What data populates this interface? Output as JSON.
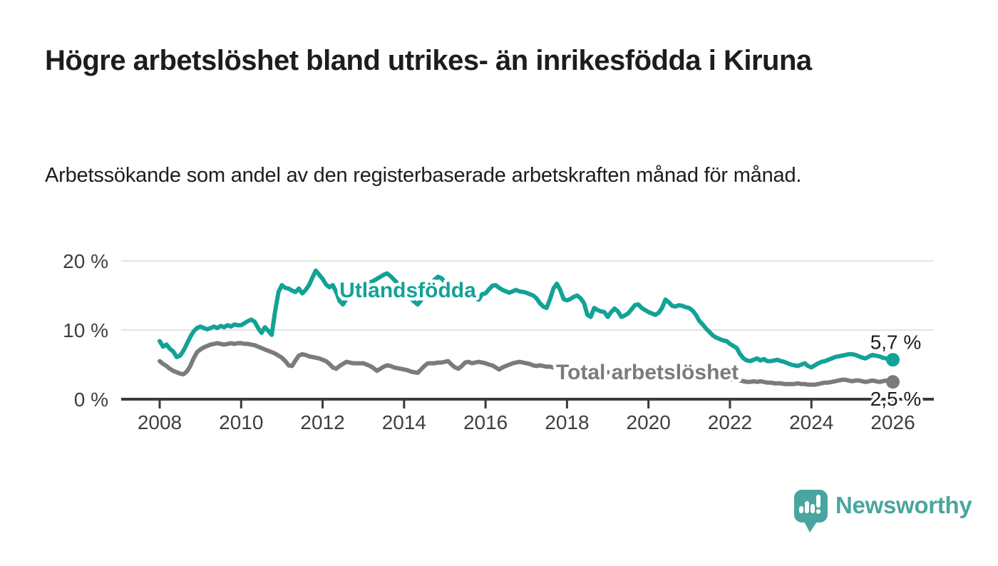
{
  "header": {
    "title": "Högre arbetslöshet bland utrikes- än inrikesfödda i Kiruna",
    "subtitle": "Arbetssökande som andel av den registerbaserade arbetskraften månad för månad."
  },
  "footer": {
    "brand": "Newsworthy"
  },
  "colors": {
    "accent_teal": "#12a296",
    "series_gray": "#7b7b7b",
    "logo_teal": "#4aa5a0",
    "text_dark": "#1d1d1b",
    "axis_text": "#3f3f3f",
    "axis_line": "#3a3a3a",
    "gridline": "#e4e4e4",
    "background": "#ffffff"
  },
  "chart_data": {
    "type": "line",
    "title": "Högre arbetslöshet bland utrikes- än inrikesfödda i Kiruna",
    "xlabel": "",
    "ylabel": "",
    "x_start_year": 2008,
    "x_step_months": 1,
    "x_tick_years": [
      "2008",
      "2010",
      "2012",
      "2014",
      "2016",
      "2018",
      "2020",
      "2022",
      "2024",
      "2026"
    ],
    "y_ticks": [
      0,
      10,
      20
    ],
    "y_tick_labels": [
      "0 %",
      "10 %",
      "20 %"
    ],
    "ylim": [
      0,
      21
    ],
    "xlim_years": [
      2007.05,
      2027.0
    ],
    "grid": "horizontal",
    "legend": "inline-labels",
    "series": [
      {
        "name": "Utlandsfödda",
        "color": "#12a296",
        "end_label": "5,7 %",
        "end_value": 5.7,
        "values": [
          8.4,
          7.6,
          7.9,
          7.3,
          6.9,
          6.1,
          6.3,
          7.0,
          8.0,
          9.0,
          9.8,
          10.3,
          10.5,
          10.3,
          10.1,
          10.3,
          10.5,
          10.3,
          10.6,
          10.4,
          10.7,
          10.5,
          10.8,
          10.7,
          10.7,
          11.0,
          11.3,
          11.5,
          11.2,
          10.3,
          9.6,
          10.4,
          9.9,
          9.3,
          12.7,
          15.5,
          16.5,
          16.1,
          16.0,
          15.7,
          15.5,
          16.0,
          15.3,
          15.8,
          16.5,
          17.6,
          18.6,
          18.0,
          17.4,
          16.6,
          16.2,
          16.5,
          15.5,
          14.2,
          13.7,
          14.5,
          15.3,
          15.8,
          16.0,
          16.2,
          16.4,
          16.6,
          16.9,
          17.1,
          17.4,
          17.7,
          18.0,
          18.2,
          17.8,
          17.3,
          16.8,
          16.3,
          15.8,
          15.2,
          14.6,
          14.1,
          13.7,
          14.3,
          15.1,
          15.9,
          16.7,
          17.3,
          17.7,
          17.5,
          17.0,
          16.5,
          16.1,
          15.8,
          15.6,
          15.5,
          15.7,
          15.8,
          15.2,
          14.6,
          14.4,
          15.2,
          15.3,
          15.9,
          16.4,
          16.5,
          16.1,
          15.8,
          15.6,
          15.4,
          15.6,
          15.8,
          15.6,
          15.5,
          15.4,
          15.2,
          15.0,
          14.6,
          13.9,
          13.4,
          13.2,
          14.5,
          16.0,
          16.7,
          15.8,
          14.5,
          14.3,
          14.5,
          14.8,
          15.0,
          14.6,
          13.9,
          12.2,
          11.9,
          13.2,
          12.9,
          12.7,
          12.6,
          11.9,
          12.6,
          13.1,
          12.7,
          11.9,
          12.1,
          12.4,
          13.0,
          13.6,
          13.7,
          13.2,
          12.9,
          12.6,
          12.4,
          12.2,
          12.5,
          13.2,
          14.4,
          14.0,
          13.5,
          13.4,
          13.6,
          13.5,
          13.3,
          13.2,
          12.8,
          12.2,
          11.3,
          10.8,
          10.2,
          9.7,
          9.2,
          8.9,
          8.7,
          8.5,
          8.4,
          8.0,
          7.7,
          7.4,
          6.5,
          5.9,
          5.6,
          5.5,
          5.7,
          5.9,
          5.6,
          5.8,
          5.5,
          5.5,
          5.6,
          5.7,
          5.5,
          5.4,
          5.2,
          5.0,
          4.9,
          4.8,
          5.0,
          5.2,
          4.8,
          4.6,
          4.9,
          5.2,
          5.4,
          5.5,
          5.7,
          5.9,
          6.1,
          6.2,
          6.3,
          6.4,
          6.5,
          6.5,
          6.4,
          6.2,
          6.0,
          5.9,
          6.2,
          6.4,
          6.3,
          6.2,
          6.0,
          5.9,
          5.8,
          5.7
        ]
      },
      {
        "name": "Total arbetslöshet",
        "color": "#7b7b7b",
        "end_label": "2,5 %",
        "end_value": 2.5,
        "values": [
          5.5,
          5.1,
          4.8,
          4.4,
          4.1,
          3.9,
          3.7,
          3.6,
          4.0,
          4.8,
          5.9,
          6.8,
          7.2,
          7.5,
          7.7,
          7.9,
          8.0,
          8.1,
          8.0,
          7.9,
          8.0,
          8.1,
          8.0,
          8.1,
          8.1,
          8.0,
          8.0,
          7.9,
          7.8,
          7.6,
          7.4,
          7.2,
          7.0,
          6.8,
          6.6,
          6.3,
          6.0,
          5.5,
          4.9,
          4.8,
          5.6,
          6.3,
          6.5,
          6.4,
          6.2,
          6.1,
          6.0,
          5.9,
          5.7,
          5.5,
          5.1,
          4.6,
          4.4,
          4.8,
          5.1,
          5.4,
          5.3,
          5.2,
          5.2,
          5.2,
          5.2,
          5.0,
          4.8,
          4.5,
          4.1,
          4.4,
          4.7,
          4.9,
          4.8,
          4.6,
          4.5,
          4.4,
          4.3,
          4.2,
          4.0,
          3.9,
          3.8,
          4.3,
          4.8,
          5.2,
          5.2,
          5.2,
          5.3,
          5.3,
          5.4,
          5.5,
          5.0,
          4.6,
          4.4,
          4.8,
          5.3,
          5.4,
          5.2,
          5.3,
          5.4,
          5.3,
          5.2,
          5.0,
          4.9,
          4.6,
          4.3,
          4.6,
          4.8,
          5.0,
          5.2,
          5.3,
          5.4,
          5.3,
          5.2,
          5.1,
          4.9,
          4.8,
          4.9,
          4.8,
          4.7,
          4.7,
          4.6,
          4.6,
          4.5,
          4.5,
          4.4,
          4.4,
          4.3,
          4.2,
          4.1,
          4.1,
          4.0,
          4.0,
          4.0,
          4.0,
          4.0,
          3.9,
          3.9,
          3.9,
          3.9,
          3.8,
          3.8,
          3.9,
          3.9,
          4.0,
          4.0,
          4.0,
          4.0,
          4.0,
          4.0,
          4.1,
          4.2,
          4.4,
          4.5,
          4.5,
          4.4,
          4.3,
          4.2,
          4.1,
          4.0,
          3.9,
          3.8,
          3.7,
          3.6,
          3.5,
          3.4,
          3.3,
          3.2,
          3.1,
          3.1,
          3.0,
          3.0,
          2.9,
          2.9,
          2.8,
          2.8,
          2.7,
          2.6,
          2.5,
          2.5,
          2.6,
          2.5,
          2.6,
          2.5,
          2.4,
          2.4,
          2.3,
          2.3,
          2.3,
          2.2,
          2.2,
          2.2,
          2.2,
          2.3,
          2.2,
          2.2,
          2.1,
          2.1,
          2.1,
          2.2,
          2.3,
          2.4,
          2.4,
          2.5,
          2.6,
          2.7,
          2.8,
          2.8,
          2.7,
          2.6,
          2.7,
          2.7,
          2.6,
          2.5,
          2.6,
          2.7,
          2.6,
          2.5,
          2.6,
          2.7,
          2.6,
          2.5
        ]
      }
    ]
  }
}
